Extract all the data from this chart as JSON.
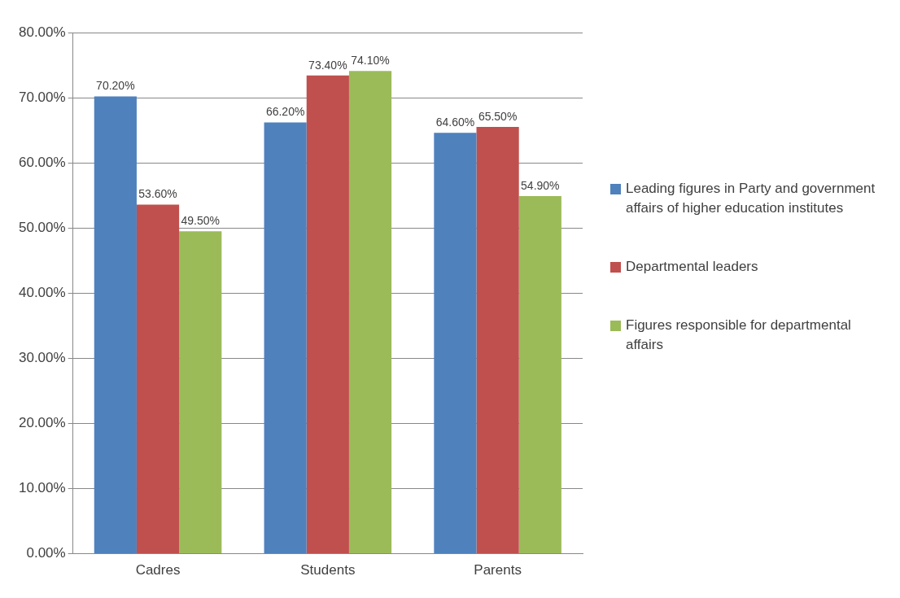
{
  "chart_data": {
    "type": "bar",
    "categories": [
      "Cadres",
      "Students",
      "Parents"
    ],
    "series": [
      {
        "name": "Leading figures in Party and government affairs of higher education institutes",
        "color": "#4f81bd",
        "values": [
          70.2,
          66.2,
          64.6
        ],
        "value_labels": [
          "70.20%",
          "66.20%",
          "64.60%"
        ]
      },
      {
        "name": "Departmental leaders",
        "color": "#c0504d",
        "values": [
          53.6,
          73.4,
          65.5
        ],
        "value_labels": [
          "53.60%",
          "73.40%",
          "65.50%"
        ]
      },
      {
        "name": "Figures responsible for departmental affairs",
        "color": "#9bbb59",
        "values": [
          49.5,
          74.1,
          54.9
        ],
        "value_labels": [
          "49.50%",
          "74.10%",
          "54.90%"
        ]
      }
    ],
    "ylim": [
      0,
      80
    ],
    "yticks": [
      {
        "value": 0,
        "label": "0.00%"
      },
      {
        "value": 10,
        "label": "10.00%"
      },
      {
        "value": 20,
        "label": "20.00%"
      },
      {
        "value": 30,
        "label": "30.00%"
      },
      {
        "value": 40,
        "label": "40.00%"
      },
      {
        "value": 50,
        "label": "50.00%"
      },
      {
        "value": 60,
        "label": "60.00%"
      },
      {
        "value": 70,
        "label": "70.00%"
      },
      {
        "value": 80,
        "label": "80.00%"
      }
    ],
    "grid": "y",
    "legend": "right"
  }
}
